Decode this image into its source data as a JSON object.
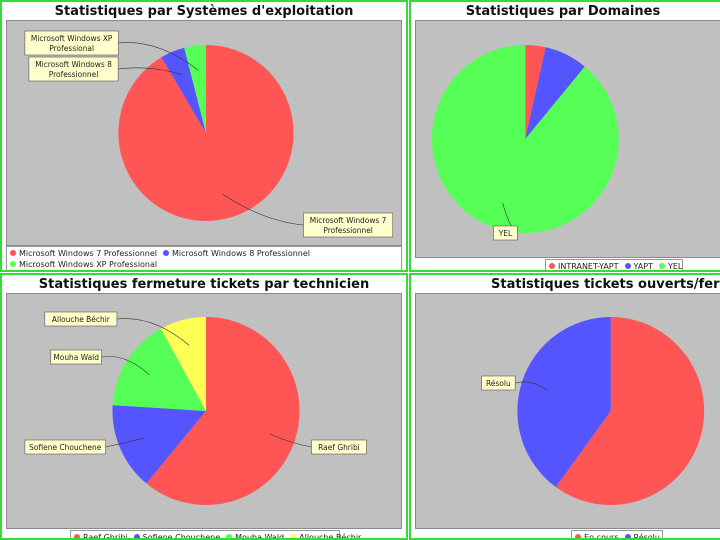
{
  "chart_data": [
    {
      "type": "pie",
      "title": "Statistiques par Systèmes d'exploitation",
      "categories": [
        "Microsoft Windows 7 Professionnel",
        "Microsoft Windows 8 Professionnel",
        "Microsoft Windows XP Professional"
      ],
      "values": [
        91.5,
        4.5,
        4.0
      ],
      "colors": [
        "#ff5555",
        "#5555ff",
        "#55ff55"
      ],
      "labels": [
        {
          "lines": [
            "Microsoft Windows XP",
            "Professional"
          ],
          "slice": 2
        },
        {
          "lines": [
            "Microsoft Windows 8",
            "Professionnel"
          ],
          "slice": 1
        },
        {
          "lines": [
            "Microsoft Windows 7",
            "Professionnel"
          ],
          "slice": 0
        }
      ],
      "legend": [
        "Microsoft Windows 7 Professionnel",
        "Microsoft Windows 8 Professionnel",
        "Microsoft Windows XP Professional"
      ],
      "legend_position": "bottom"
    },
    {
      "type": "pie",
      "title": "Statistiques par Domaines",
      "categories": [
        "INTRANET-YAPT",
        "YAPT",
        "YEL"
      ],
      "values": [
        3.5,
        7.5,
        89.0
      ],
      "colors": [
        "#ff5555",
        "#5555ff",
        "#55ff55"
      ],
      "labels": [
        {
          "lines": [
            "YEL"
          ],
          "slice": 2
        }
      ],
      "legend": [
        "INTRANET-YAPT",
        "YAPT",
        "YEL"
      ],
      "legend_position": "bottom"
    },
    {
      "type": "pie",
      "title": "Statistiques fermeture tickets par technicien",
      "categories": [
        "Raef Ghribi",
        "Sofiene Chouchene",
        "Mouha Wald",
        "Allouche Béchir"
      ],
      "values": [
        61,
        15,
        16,
        8
      ],
      "colors": [
        "#ff5555",
        "#5555ff",
        "#55ff55",
        "#ffff55"
      ],
      "labels": [
        {
          "lines": [
            "Allouche Béchir"
          ],
          "slice": 3
        },
        {
          "lines": [
            "Mouha Wald"
          ],
          "slice": 2
        },
        {
          "lines": [
            "Sofiene Chouchene"
          ],
          "slice": 1
        },
        {
          "lines": [
            "Raef Ghribi"
          ],
          "slice": 0
        }
      ],
      "legend": [
        "Raef Ghribi",
        "Sofiene Chouchene",
        "Mouha Wald",
        "Allouche Béchir"
      ],
      "legend_position": "bottom"
    },
    {
      "type": "pie",
      "title": "Statistiques tickets ouverts/ferme",
      "categories": [
        "En cours",
        "Résolu"
      ],
      "values": [
        60,
        40
      ],
      "colors": [
        "#ff5555",
        "#5555ff"
      ],
      "labels": [
        {
          "lines": [
            "Résolu"
          ],
          "slice": 1
        }
      ],
      "legend": [
        "En cours",
        "Résolu"
      ],
      "legend_position": "bottom"
    }
  ]
}
